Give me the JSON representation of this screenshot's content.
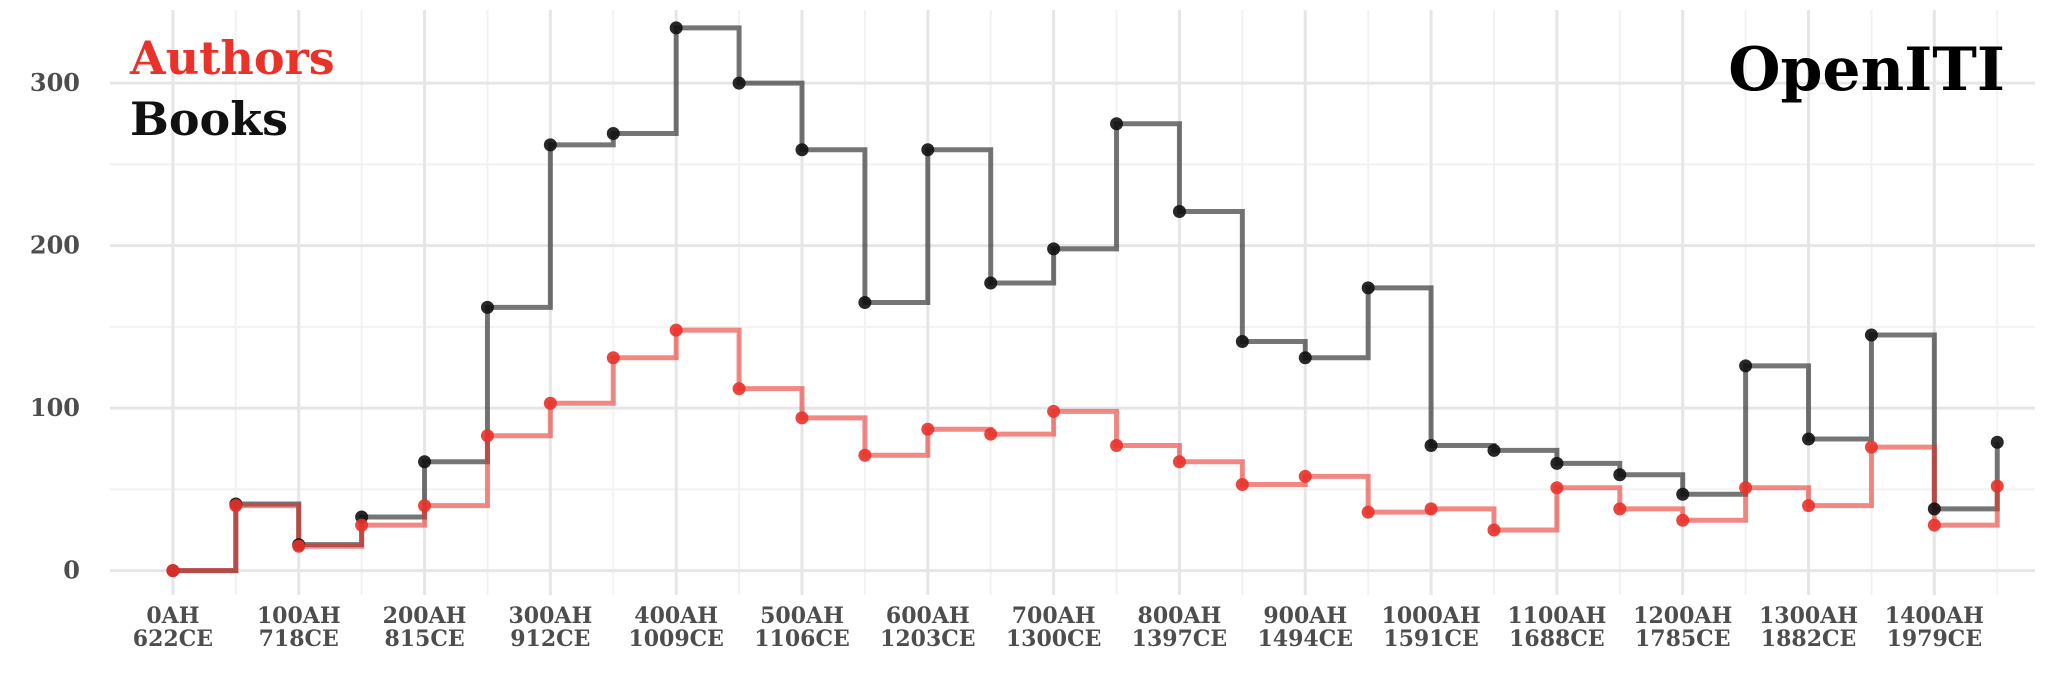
{
  "title": "OpenITI",
  "colors": {
    "authors": "#e8322a",
    "books": "#111111",
    "grid_major": "#e6e6e6",
    "grid_minor": "#f2f2f2"
  },
  "chart_data": {
    "type": "line",
    "step": "hv",
    "grid": true,
    "legend_placement": "top-left",
    "title": "OpenITI",
    "xlabel": "",
    "ylabel": "",
    "xlim": [
      -50,
      1480
    ],
    "ylim": [
      -15,
      345
    ],
    "y_ticks": [
      0,
      100,
      200,
      300
    ],
    "x_ticks": [
      {
        "x": 0,
        "label1": "0AH",
        "label2": "622CE"
      },
      {
        "x": 100,
        "label1": "100AH",
        "label2": "718CE"
      },
      {
        "x": 200,
        "label1": "200AH",
        "label2": "815CE"
      },
      {
        "x": 300,
        "label1": "300AH",
        "label2": "912CE"
      },
      {
        "x": 400,
        "label1": "400AH",
        "label2": "1009CE"
      },
      {
        "x": 500,
        "label1": "500AH",
        "label2": "1106CE"
      },
      {
        "x": 600,
        "label1": "600AH",
        "label2": "1203CE"
      },
      {
        "x": 700,
        "label1": "700AH",
        "label2": "1300CE"
      },
      {
        "x": 800,
        "label1": "800AH",
        "label2": "1397CE"
      },
      {
        "x": 900,
        "label1": "900AH",
        "label2": "1494CE"
      },
      {
        "x": 1000,
        "label1": "1000AH",
        "label2": "1591CE"
      },
      {
        "x": 1100,
        "label1": "1100AH",
        "label2": "1688CE"
      },
      {
        "x": 1200,
        "label1": "1200AH",
        "label2": "1785CE"
      },
      {
        "x": 1300,
        "label1": "1300AH",
        "label2": "1882CE"
      },
      {
        "x": 1400,
        "label1": "1400AH",
        "label2": "1979CE"
      }
    ],
    "x": [
      0,
      50,
      100,
      150,
      200,
      250,
      300,
      350,
      400,
      450,
      500,
      550,
      600,
      650,
      700,
      750,
      800,
      850,
      900,
      950,
      1000,
      1050,
      1100,
      1150,
      1200,
      1250,
      1300,
      1350,
      1400,
      1450
    ],
    "series": [
      {
        "name": "Books",
        "color": "#111111",
        "values": [
          0,
          41,
          16,
          33,
          67,
          162,
          262,
          269,
          334,
          300,
          259,
          165,
          259,
          177,
          198,
          275,
          221,
          141,
          131,
          174,
          77,
          74,
          66,
          59,
          47,
          126,
          81,
          145,
          38,
          79
        ]
      },
      {
        "name": "Authors",
        "color": "#e8322a",
        "values": [
          0,
          40,
          15,
          28,
          40,
          83,
          103,
          131,
          148,
          112,
          94,
          71,
          87,
          84,
          98,
          77,
          67,
          53,
          58,
          36,
          38,
          25,
          51,
          38,
          31,
          51,
          40,
          76,
          28,
          52
        ]
      }
    ]
  }
}
